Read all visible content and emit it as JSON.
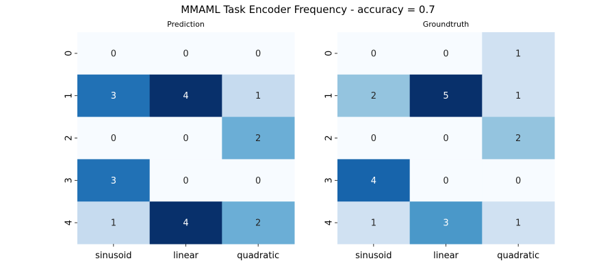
{
  "figure": {
    "title": "MMAML Task Encoder Frequency - accuracy = 0.7"
  },
  "chart_data": [
    {
      "type": "heatmap",
      "title": "Prediction",
      "xlabel": "",
      "ylabel": "",
      "x_categories": [
        "sinusoid",
        "linear",
        "quadratic"
      ],
      "y_categories": [
        "0",
        "1",
        "2",
        "3",
        "4"
      ],
      "values": [
        [
          0,
          0,
          0
        ],
        [
          3,
          4,
          1
        ],
        [
          0,
          0,
          2
        ],
        [
          3,
          0,
          0
        ],
        [
          1,
          4,
          2
        ]
      ],
      "colormap": "Blues",
      "annotated": true,
      "colorbar": false
    },
    {
      "type": "heatmap",
      "title": "Groundtruth",
      "xlabel": "",
      "ylabel": "",
      "x_categories": [
        "sinusoid",
        "linear",
        "quadratic"
      ],
      "y_categories": [
        "0",
        "1",
        "2",
        "3",
        "4"
      ],
      "values": [
        [
          0,
          0,
          1
        ],
        [
          2,
          5,
          1
        ],
        [
          0,
          0,
          2
        ],
        [
          4,
          0,
          0
        ],
        [
          1,
          3,
          1
        ]
      ],
      "colormap": "Blues",
      "annotated": true,
      "colorbar": false
    }
  ]
}
